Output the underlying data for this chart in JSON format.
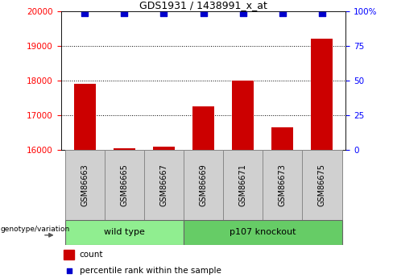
{
  "title": "GDS1931 / 1438991_x_at",
  "samples": [
    "GSM86663",
    "GSM86665",
    "GSM86667",
    "GSM86669",
    "GSM86671",
    "GSM86673",
    "GSM86675"
  ],
  "counts": [
    17900,
    16050,
    16100,
    17250,
    18000,
    16650,
    19200
  ],
  "percentile_ranks": [
    99,
    99,
    99,
    99,
    99,
    99,
    99
  ],
  "ylim": [
    16000,
    20000
  ],
  "yticks_left": [
    16000,
    17000,
    18000,
    19000,
    20000
  ],
  "yticks_right": [
    0,
    25,
    50,
    75,
    100
  ],
  "bar_color": "#cc0000",
  "dot_color": "#0000cc",
  "groups": [
    {
      "label": "wild type",
      "indices": [
        0,
        1,
        2
      ],
      "color": "#90ee90"
    },
    {
      "label": "p107 knockout",
      "indices": [
        3,
        4,
        5,
        6
      ],
      "color": "#66cc66"
    }
  ],
  "group_label": "genotype/variation",
  "legend_count_label": "count",
  "legend_percentile_label": "percentile rank within the sample",
  "bar_width": 0.55,
  "dot_size": 35,
  "sample_box_color": "#d0d0d0",
  "title_fontsize": 9,
  "tick_fontsize": 7.5,
  "label_fontsize": 7,
  "group_fontsize": 8
}
